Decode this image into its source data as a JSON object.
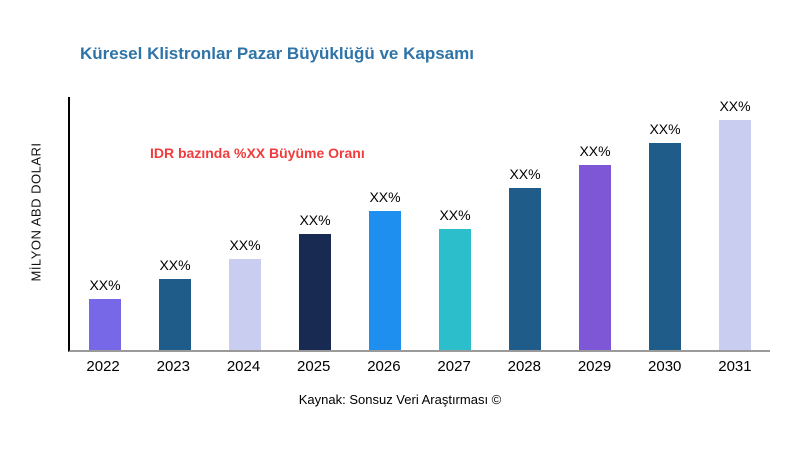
{
  "title": "Küresel Klistronlar Pazar Büyüklüğü ve Kapsamı",
  "y_axis_label": "MİLYON ABD DOLARI",
  "annotation": "IDR bazında %XX Büyüme Oranı",
  "source": "Kaynak: Sonsuz Veri Araştırması ©",
  "colors": {
    "title": "#2e74a8",
    "annotation": "#f23c3c",
    "axis": "#000000"
  },
  "chart_data": {
    "type": "bar",
    "title": "Küresel Klistronlar Pazar Büyüklüğü ve Kapsamı",
    "xlabel": "",
    "ylabel": "MİLYON ABD DOLARI",
    "categories": [
      "2022",
      "2023",
      "2024",
      "2025",
      "2026",
      "2027",
      "2028",
      "2029",
      "2030",
      "2031"
    ],
    "values": [
      20,
      28,
      36,
      46,
      55,
      48,
      64,
      73,
      82,
      91
    ],
    "bar_labels": [
      "XX%",
      "XX%",
      "XX%",
      "XX%",
      "XX%",
      "XX%",
      "XX%",
      "XX%",
      "XX%",
      "XX%"
    ],
    "bar_colors": [
      "#7668e6",
      "#1f5c8a",
      "#c9cdf0",
      "#182a52",
      "#1e8fef",
      "#2cbecb",
      "#1f5c8a",
      "#7e57d6",
      "#1f5c8a",
      "#c9cdf0"
    ],
    "ylim": [
      0,
      100
    ],
    "grid": false,
    "legend": false,
    "annotation": "IDR bazında %XX Büyüme Oranı"
  }
}
